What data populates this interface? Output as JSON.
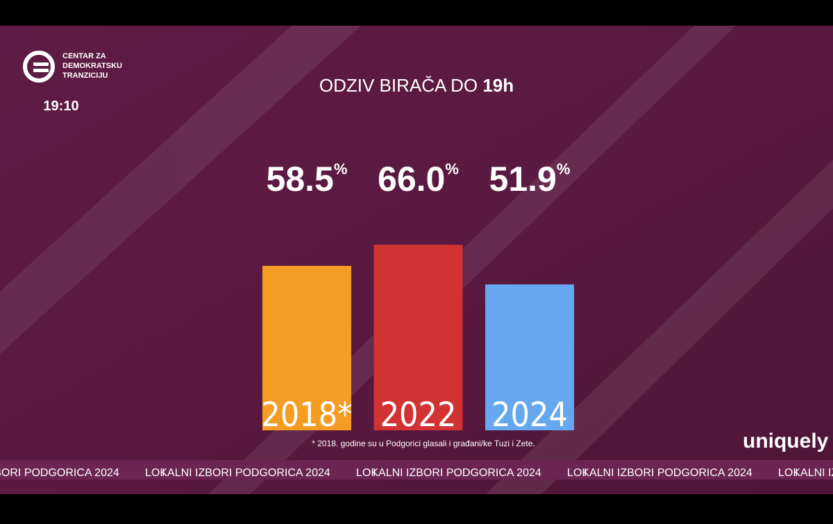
{
  "chart_data": {
    "type": "bar",
    "title": "ODZIV BIRAČA DO",
    "title_emphasis": "19h",
    "categories": [
      "2018*",
      "2022",
      "2024"
    ],
    "values": [
      58.5,
      66.0,
      51.9
    ],
    "value_labels": [
      "58.5%",
      "66.0%",
      "51.9%"
    ],
    "colors": [
      "#f59c22",
      "#d13333",
      "#65a8ef"
    ],
    "footnote": "* 2018. godine su u Podgorici glasali i građani/ke Tuzi i Zete."
  },
  "logo": {
    "lines": [
      "CENTAR ZA",
      "DEMOKRATSKU",
      "TRANZICIJU"
    ],
    "clock": "19:10"
  },
  "brand": "uniquely",
  "ticker": {
    "text": "LOKALNI IZBORI PODGORICA 2024",
    "separator": "I"
  }
}
